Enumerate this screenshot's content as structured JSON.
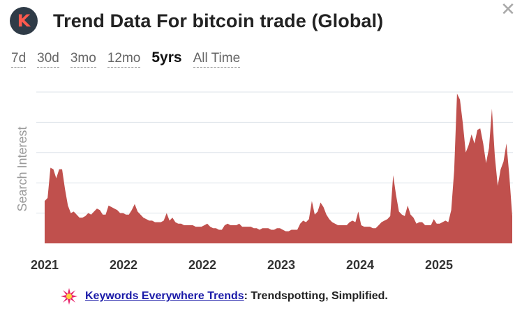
{
  "header": {
    "logo_letter": "K",
    "title": "Trend Data For bitcoin trade (Global)",
    "close_glyph": "✕"
  },
  "ranges": [
    {
      "label": "7d",
      "active": false
    },
    {
      "label": "30d",
      "active": false
    },
    {
      "label": "3mo",
      "active": false
    },
    {
      "label": "12mo",
      "active": false
    },
    {
      "label": "5yrs",
      "active": true
    },
    {
      "label": "All Time",
      "active": false
    }
  ],
  "chart_data": {
    "type": "area",
    "ylabel": "Search Interest",
    "x_tick_labels": [
      "2021",
      "2022",
      "2022",
      "2023",
      "2024",
      "2025"
    ],
    "ylim": [
      0,
      100
    ],
    "grid": true,
    "color": "#c0504d",
    "values": [
      28,
      30,
      50,
      49,
      43,
      49,
      49,
      36,
      25,
      20,
      21,
      19,
      17,
      17,
      18,
      20,
      19,
      21,
      23,
      22,
      19,
      19,
      25,
      24,
      23,
      22,
      20,
      20,
      19,
      19,
      22,
      26,
      21,
      19,
      17,
      16,
      15,
      15,
      14,
      14,
      14,
      15,
      20,
      15,
      17,
      14,
      13,
      13,
      12,
      12,
      12,
      12,
      11,
      11,
      11,
      12,
      13,
      11,
      10,
      10,
      9,
      9,
      12,
      13,
      12,
      12,
      12,
      13,
      11,
      11,
      11,
      11,
      10,
      10,
      9,
      10,
      10,
      10,
      9,
      9,
      10,
      10,
      9,
      8,
      8,
      9,
      9,
      9,
      13,
      15,
      14,
      16,
      28,
      19,
      21,
      27,
      24,
      19,
      16,
      14,
      13,
      12,
      12,
      12,
      12,
      14,
      15,
      14,
      21,
      12,
      11,
      11,
      11,
      10,
      10,
      12,
      14,
      15,
      16,
      18,
      45,
      32,
      21,
      19,
      18,
      25,
      19,
      17,
      13,
      14,
      14,
      12,
      12,
      12,
      16,
      13,
      13,
      14,
      15,
      14,
      22,
      48,
      99,
      95,
      79,
      60,
      65,
      72,
      66,
      75,
      76,
      66,
      53,
      63,
      89,
      58,
      38,
      49,
      54,
      66,
      45,
      18
    ],
    "colors": {
      "fill": "#c0504d",
      "grid": "#dde3ea",
      "axis_text": "#333333",
      "ylabel": "#999999"
    }
  },
  "footer": {
    "icon": "starburst-icon",
    "link_text": "Keywords Everywhere Trends",
    "tagline": ": Trendspotting, Simplified."
  }
}
